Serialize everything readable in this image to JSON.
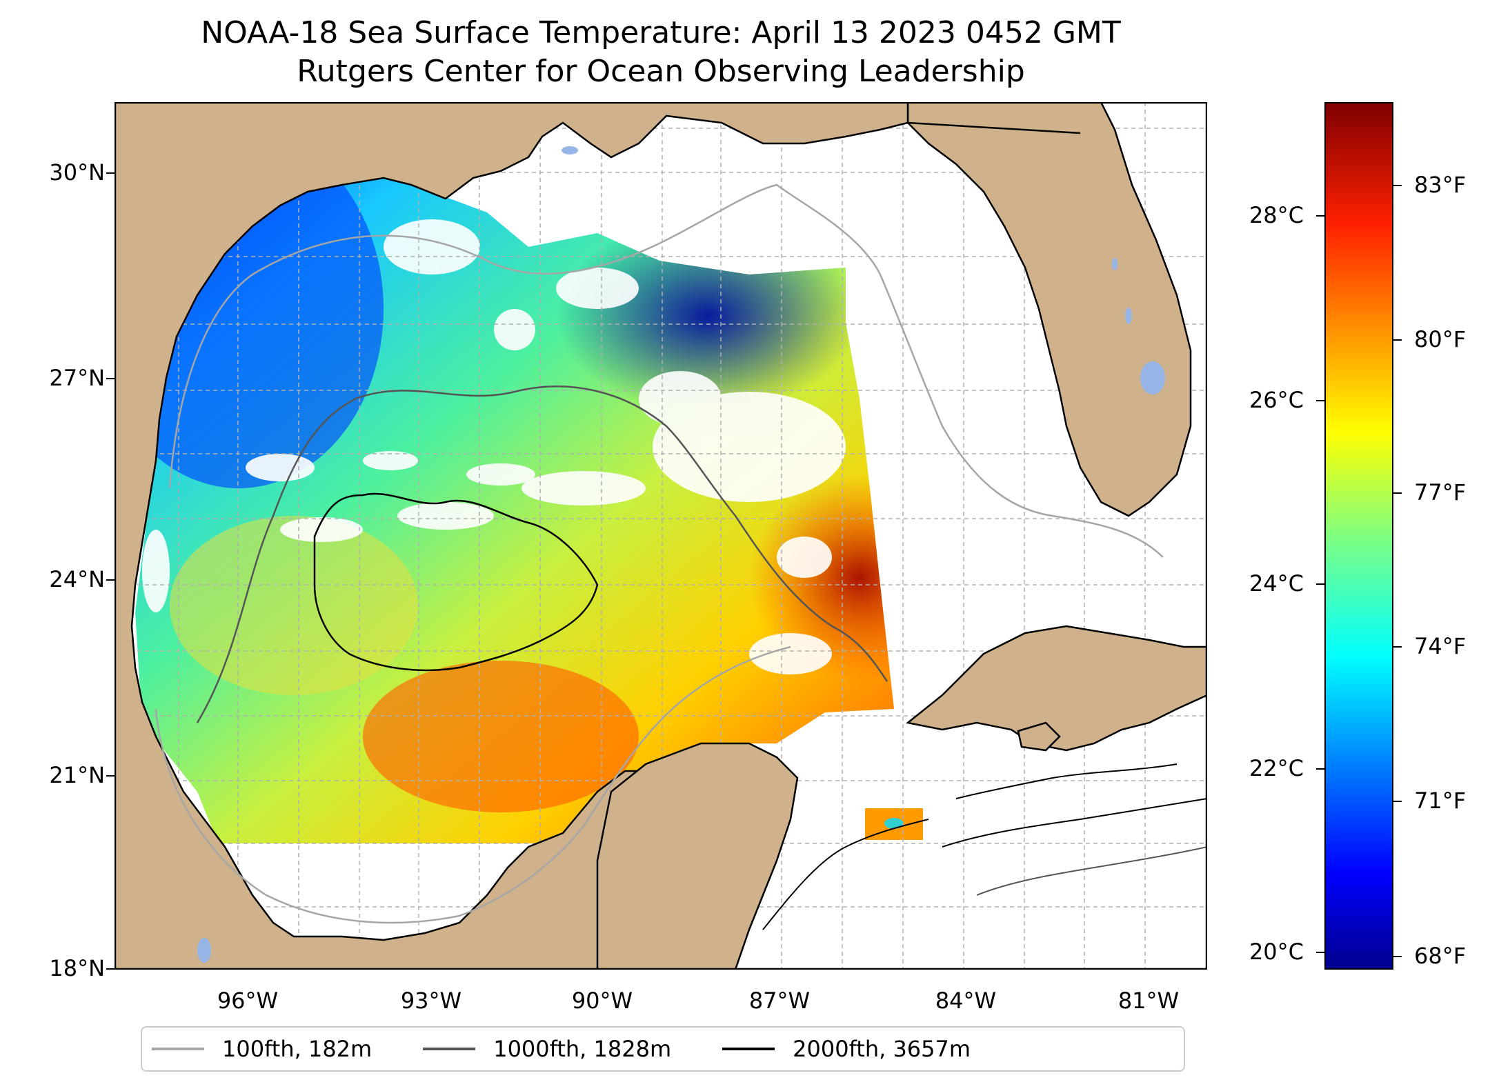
{
  "title": {
    "line1": "NOAA-18 Sea Surface Temperature: April 13 2023 0452 GMT",
    "line2": "Rutgers Center for Ocean Observing Leadership"
  },
  "map": {
    "projection": "plate carree",
    "lon_range": [
      -98,
      -80.25
    ],
    "lat_range": [
      18,
      31
    ],
    "gridlines": true,
    "land_color": "#cfb28b",
    "lake_color": "#96b4e6",
    "no_data_color": "#ffffff",
    "y_ticks": [
      "18°N",
      "21°N",
      "24°N",
      "27°N",
      "30°N"
    ],
    "x_ticks": [
      "96°W",
      "93°W",
      "90°W",
      "87°W",
      "84°W",
      "81°W"
    ]
  },
  "colorbar": {
    "colormap": "jet",
    "range_c": [
      19.8,
      29.6
    ],
    "celsius_ticks": [
      "20°C",
      "22°C",
      "24°C",
      "26°C",
      "28°C"
    ],
    "fahrenheit_ticks": [
      "68°F",
      "71°F",
      "74°F",
      "77°F",
      "80°F",
      "83°F"
    ]
  },
  "legend": [
    {
      "label": "100fth, 182m",
      "color": "#a6a6a6"
    },
    {
      "label": "1000fth, 1828m",
      "color": "#555555"
    },
    {
      "label": "2000fth, 3657m",
      "color": "#000000"
    }
  ]
}
